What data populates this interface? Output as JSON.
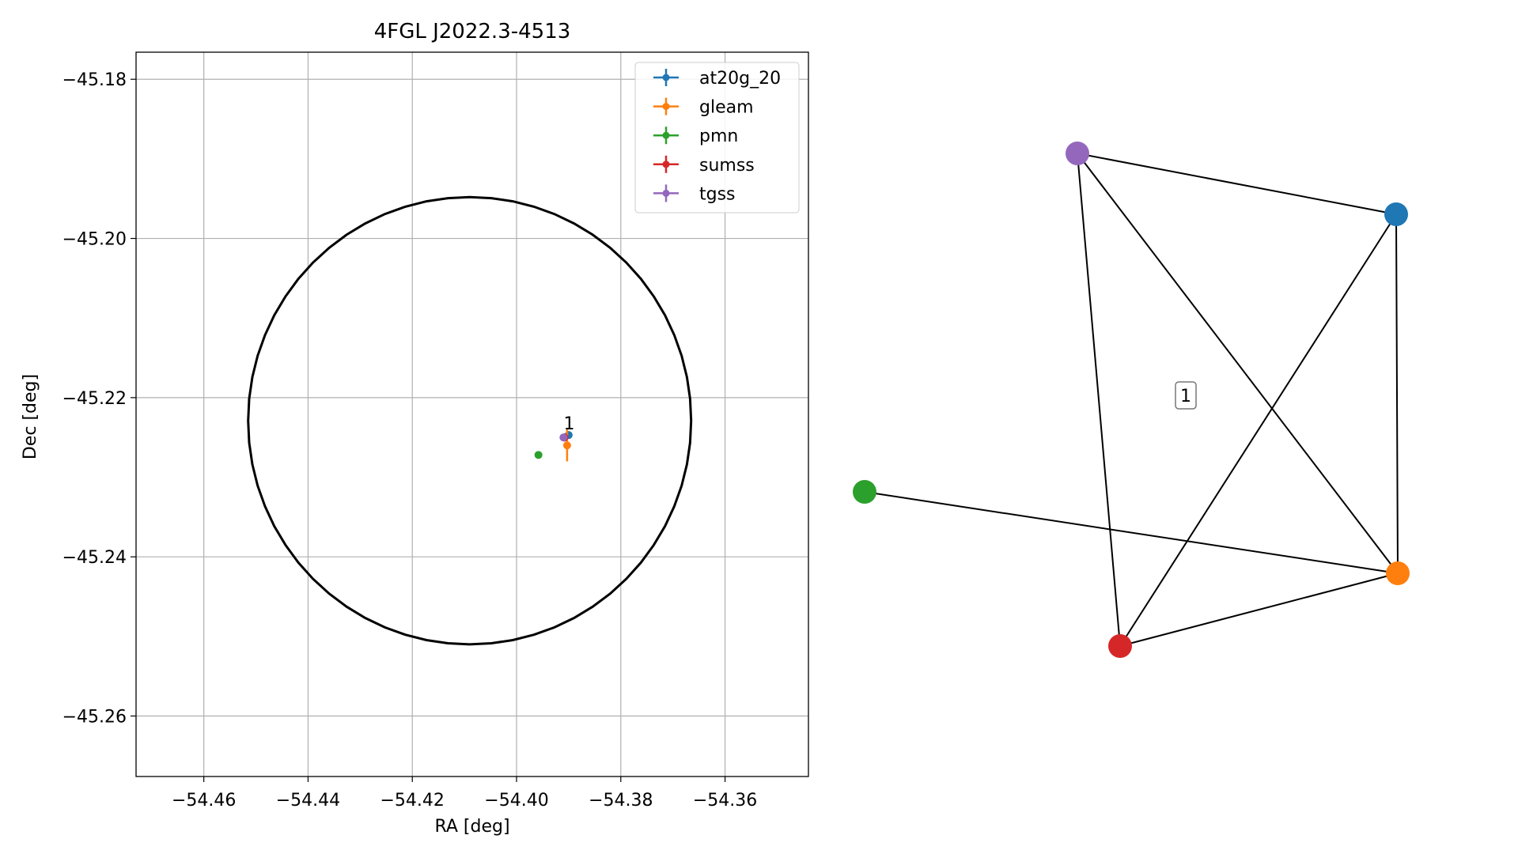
{
  "chart_data": [
    {
      "type": "scatter",
      "title": "4FGL J2022.3-4513",
      "xlabel": "RA [deg]",
      "ylabel": "Dec [deg]",
      "xlim": [
        -54.473,
        -54.344
      ],
      "ylim": [
        -45.2676,
        -45.1766
      ],
      "xticks": [
        -54.46,
        -54.44,
        -54.42,
        -54.4,
        -54.38,
        -54.36
      ],
      "xtick_labels": [
        "−54.46",
        "−54.44",
        "−54.42",
        "−54.40",
        "−54.38",
        "−54.36"
      ],
      "yticks": [
        -45.18,
        -45.2,
        -45.22,
        -45.24,
        -45.26
      ],
      "ytick_labels": [
        "−45.18",
        "−45.20",
        "−45.22",
        "−45.24",
        "−45.26"
      ],
      "grid": true,
      "legend_position": "top-right",
      "ellipse": {
        "center": [
          -54.409,
          -45.2229
        ],
        "r_ra": 0.0425,
        "r_dec": 0.0281
      },
      "series": [
        {
          "name": "at20g_20",
          "color": "#1f77b4",
          "x": -54.39,
          "y": -45.2247,
          "xerr": 0.0003,
          "yerr": 0.0004
        },
        {
          "name": "gleam",
          "color": "#ff7f0e",
          "x": -54.3903,
          "y": -45.226,
          "xerr": 0.0004,
          "yerr": 0.002
        },
        {
          "name": "pmn",
          "color": "#2ca02c",
          "x": -54.3958,
          "y": -45.2272,
          "xerr": 0.0,
          "yerr": 0.0
        },
        {
          "name": "sumss",
          "color": "#d62728",
          "x": -54.3908,
          "y": -45.225,
          "xerr": 0.0005,
          "yerr": 0.0005
        },
        {
          "name": "tgss",
          "color": "#9467bd",
          "x": -54.391,
          "y": -45.225,
          "xerr": 0.0002,
          "yerr": 0.0002
        }
      ],
      "annotations": [
        {
          "text": "1",
          "x": -54.3899,
          "y": -45.224
        }
      ]
    },
    {
      "type": "network",
      "cluster_label": "1",
      "nodes": [
        {
          "name": "at20g_20",
          "color": "#1f77b4"
        },
        {
          "name": "gleam",
          "color": "#ff7f0e"
        },
        {
          "name": "pmn",
          "color": "#2ca02c"
        },
        {
          "name": "sumss",
          "color": "#d62728"
        },
        {
          "name": "tgss",
          "color": "#9467bd"
        }
      ],
      "edges": [
        [
          "tgss",
          "at20g_20"
        ],
        [
          "tgss",
          "sumss"
        ],
        [
          "tgss",
          "gleam"
        ],
        [
          "at20g_20",
          "sumss"
        ],
        [
          "at20g_20",
          "gleam"
        ],
        [
          "pmn",
          "gleam"
        ],
        [
          "sumss",
          "gleam"
        ]
      ]
    }
  ]
}
